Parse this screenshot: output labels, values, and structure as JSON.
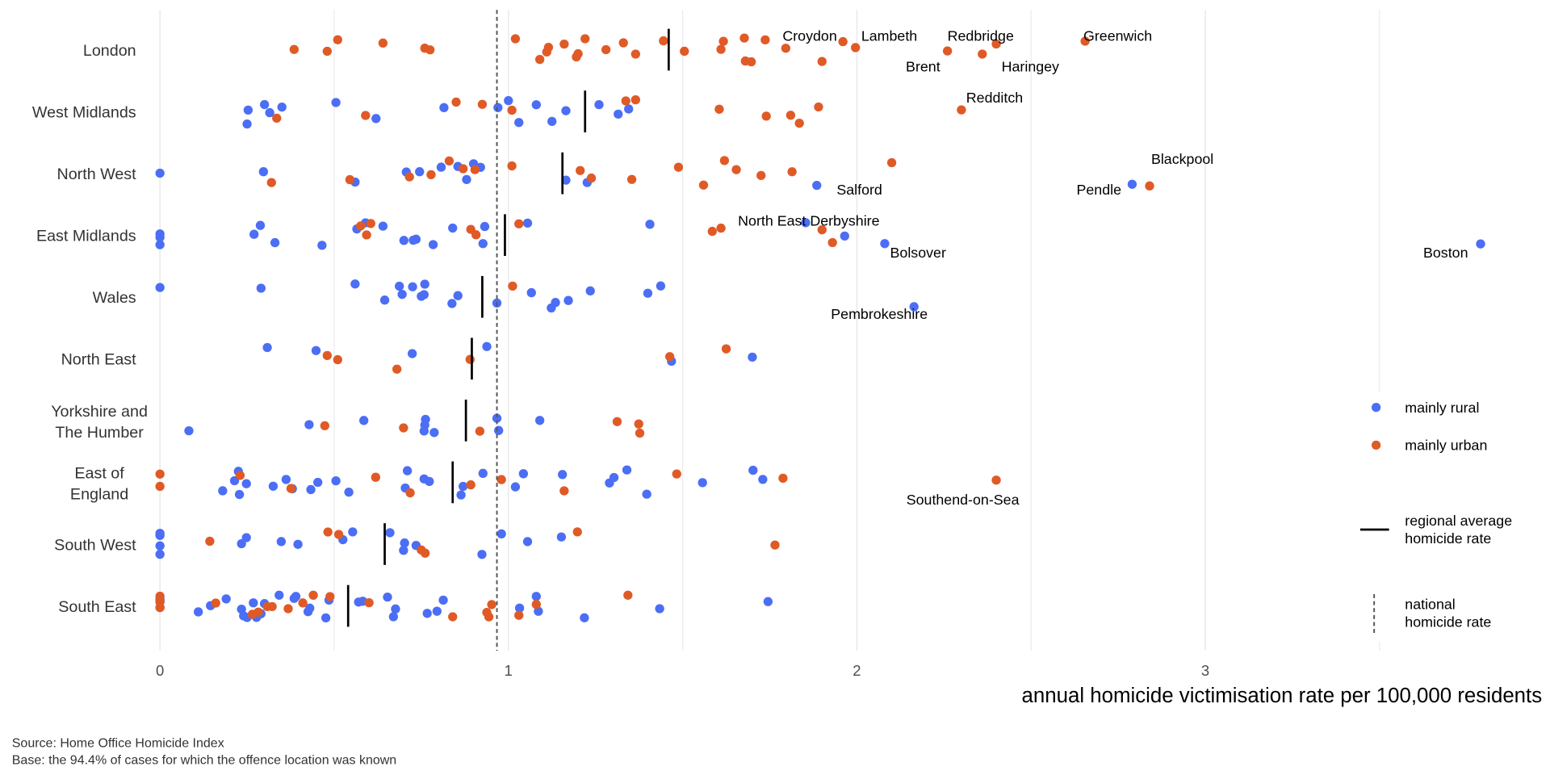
{
  "chart_data": {
    "type": "scatter",
    "xlabel": "annual homicide victimisation rate per 100,000 residents",
    "xlim": [
      0,
      3.95
    ],
    "x_ticks": [
      "0",
      "1",
      "2",
      "3"
    ],
    "grid": true,
    "legend_placement": "right",
    "colors": {
      "mainly rural": "#4b6ef5",
      "mainly urban": "#e05a26",
      "regional_avg": "#000000",
      "national": "#555555"
    },
    "national_rate": 0.967,
    "legend": {
      "rural": "mainly rural",
      "urban": "mainly urban",
      "regional": [
        "regional average",
        "homicide rate"
      ],
      "national": [
        "national",
        "homicide rate"
      ]
    },
    "regions": [
      {
        "name": [
          "London"
        ],
        "regional_avg": 1.46,
        "rural": [],
        "urban": [
          0.385,
          0.48,
          0.51,
          0.64,
          0.76,
          0.775,
          1.02,
          1.09,
          1.11,
          1.115,
          1.16,
          1.195,
          1.2,
          1.22,
          1.28,
          1.33,
          1.365,
          1.445,
          1.505,
          1.61,
          1.617,
          1.677,
          1.68,
          1.697,
          1.737,
          1.796,
          1.9,
          1.96,
          1.996,
          2.26,
          2.36,
          2.4,
          2.655
        ]
      },
      {
        "name": [
          "West Midlands"
        ],
        "regional_avg": 1.22,
        "rural": [
          0.25,
          0.253,
          0.3,
          0.315,
          0.35,
          0.505,
          0.62,
          0.815,
          0.97,
          1.0,
          1.03,
          1.08,
          1.125,
          1.165,
          1.26,
          1.315,
          1.345
        ],
        "urban": [
          0.335,
          0.59,
          0.85,
          0.925,
          1.01,
          1.337,
          1.365,
          1.605,
          1.74,
          1.81,
          1.835,
          1.89,
          2.3
        ]
      },
      {
        "name": [
          "North West"
        ],
        "regional_avg": 1.155,
        "rural": [
          0,
          0.297,
          0.56,
          0.707,
          0.745,
          0.807,
          0.855,
          0.88,
          0.9,
          0.92,
          1.165,
          1.226,
          1.885,
          2.79
        ],
        "urban": [
          0.32,
          0.545,
          0.716,
          0.778,
          0.83,
          0.87,
          0.904,
          1.01,
          1.206,
          1.238,
          1.354,
          1.488,
          1.56,
          1.62,
          1.654,
          1.725,
          1.814,
          2.1,
          2.84
        ]
      },
      {
        "name": [
          "East Midlands"
        ],
        "regional_avg": 0.99,
        "rural": [
          0,
          0,
          0,
          0.27,
          0.288,
          0.33,
          0.465,
          0.565,
          0.59,
          0.64,
          0.7,
          0.727,
          0.735,
          0.784,
          0.84,
          0.927,
          0.932,
          1.055,
          1.406,
          1.853,
          1.965,
          2.08,
          3.79
        ],
        "urban": [
          0.576,
          0.593,
          0.605,
          0.892,
          0.907,
          1.03,
          1.585,
          1.61,
          1.9,
          1.93
        ]
      },
      {
        "name": [
          "Wales"
        ],
        "regional_avg": 0.925,
        "rural": [
          0,
          0.29,
          0.56,
          0.645,
          0.687,
          0.695,
          0.725,
          0.75,
          0.758,
          0.76,
          0.838,
          0.855,
          0.967,
          1.066,
          1.123,
          1.135,
          1.172,
          1.235,
          1.4,
          1.437,
          2.164
        ],
        "urban": [
          1.012
        ]
      },
      {
        "name": [
          "North East"
        ],
        "regional_avg": 0.895,
        "rural": [
          0.308,
          0.448,
          0.724,
          0.938,
          1.468,
          1.7
        ],
        "urban": [
          0.48,
          0.51,
          0.68,
          0.89,
          1.463,
          1.625
        ]
      },
      {
        "name": [
          "Yorkshire and",
          "The Humber"
        ],
        "regional_avg": 0.878,
        "rural": [
          0.083,
          0.428,
          0.585,
          0.758,
          0.76,
          0.762,
          0.787,
          0.972,
          0.967,
          1.09
        ],
        "urban": [
          0.473,
          0.699,
          0.918,
          1.312,
          1.377,
          1.374
        ]
      },
      {
        "name": [
          "East of",
          "England"
        ],
        "regional_avg": 0.84,
        "rural": [
          0.18,
          0.214,
          0.225,
          0.228,
          0.248,
          0.325,
          0.362,
          0.38,
          0.433,
          0.453,
          0.505,
          0.542,
          0.704,
          0.71,
          0.758,
          0.773,
          0.864,
          0.87,
          0.927,
          1.02,
          1.043,
          1.155,
          1.29,
          1.303,
          1.34,
          1.397,
          1.557,
          1.702,
          1.73
        ],
        "urban": [
          0,
          0,
          0.23,
          0.376,
          0.619,
          0.718,
          0.892,
          0.98,
          1.16,
          1.483,
          1.788,
          2.4
        ]
      },
      {
        "name": [
          "South West"
        ],
        "regional_avg": 0.645,
        "rural": [
          0,
          0,
          0,
          0,
          0.234,
          0.248,
          0.348,
          0.396,
          0.525,
          0.553,
          0.66,
          0.699,
          0.702,
          0.735,
          0.924,
          0.98,
          1.055,
          1.152
        ],
        "urban": [
          0.143,
          0.482,
          0.513,
          0.75,
          0.761,
          1.198,
          1.765
        ]
      },
      {
        "name": [
          "South East"
        ],
        "regional_avg": 0.54,
        "rural": [
          0,
          0,
          0,
          0.11,
          0.145,
          0.19,
          0.234,
          0.24,
          0.25,
          0.268,
          0.277,
          0.29,
          0.3,
          0.342,
          0.385,
          0.39,
          0.425,
          0.43,
          0.476,
          0.485,
          0.57,
          0.582,
          0.653,
          0.67,
          0.676,
          0.767,
          0.795,
          0.813,
          1.032,
          1.08,
          1.086,
          1.218,
          1.434,
          1.745
        ],
        "urban": [
          0,
          0,
          0,
          0,
          0.16,
          0.265,
          0.282,
          0.308,
          0.322,
          0.368,
          0.41,
          0.44,
          0.488,
          0.6,
          0.84,
          0.938,
          0.944,
          0.952,
          1.03,
          1.08,
          1.343
        ]
      }
    ],
    "annotations": [
      {
        "text": "Croydon",
        "region": "London",
        "x": 1.96
      },
      {
        "text": "Lambeth",
        "region": "London",
        "x": 1.996
      },
      {
        "text": "Redbridge",
        "region": "London",
        "x": 2.4
      },
      {
        "text": "Greenwich",
        "region": "London",
        "x": 2.655
      },
      {
        "text": "Brent",
        "region": "London",
        "x": 2.26
      },
      {
        "text": "Haringey",
        "region": "London",
        "x": 2.36
      },
      {
        "text": "Redditch",
        "region": "West Midlands",
        "x": 2.3
      },
      {
        "text": "Blackpool",
        "region": "North West",
        "x": 2.84
      },
      {
        "text": "Salford",
        "region": "North West",
        "x": 2.1
      },
      {
        "text": "Pendle",
        "region": "North West",
        "x": 2.79
      },
      {
        "text": "North East Derbyshire",
        "region": "East Midlands",
        "x": 1.9
      },
      {
        "text": "Bolsover",
        "region": "East Midlands",
        "x": 2.08
      },
      {
        "text": "Boston",
        "region": "East Midlands",
        "x": 3.79
      },
      {
        "text": "Pembrokeshire",
        "region": "Wales",
        "x": 2.164
      },
      {
        "text": "Southend-on-Sea",
        "region": "East of England",
        "x": 2.4
      }
    ],
    "caption": [
      "Source: Home Office Homicide Index",
      "Base: the 94.4% of cases for which the offence location was known"
    ]
  }
}
